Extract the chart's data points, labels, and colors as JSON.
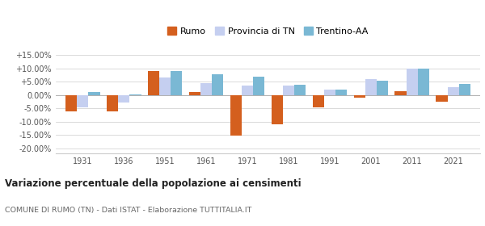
{
  "years": [
    1931,
    1936,
    1951,
    1961,
    1971,
    1981,
    1991,
    2001,
    2011,
    2021
  ],
  "rumo": [
    -6.0,
    -6.2,
    9.0,
    1.2,
    -15.2,
    -11.0,
    -4.5,
    -1.0,
    1.5,
    -2.5
  ],
  "provincia_tn": [
    -4.5,
    -2.8,
    6.5,
    4.5,
    3.5,
    3.5,
    2.0,
    6.0,
    10.0,
    3.0
  ],
  "trentino_aa": [
    1.0,
    0.2,
    9.0,
    7.8,
    7.0,
    3.8,
    2.0,
    5.5,
    9.8,
    4.2
  ],
  "color_rumo": "#d45f1e",
  "color_provincia": "#c5cff0",
  "color_trentino": "#7ab8d4",
  "ylim": [
    -22,
    17
  ],
  "yticks": [
    -20,
    -15,
    -10,
    -5,
    0,
    5,
    10,
    15
  ],
  "title": "Variazione percentuale della popolazione ai censimenti",
  "subtitle": "COMUNE DI RUMO (TN) - Dati ISTAT - Elaborazione TUTTITALIA.IT",
  "legend_labels": [
    "Rumo",
    "Provincia di TN",
    "Trentino-AA"
  ],
  "bar_width": 0.28,
  "background_color": "#ffffff"
}
